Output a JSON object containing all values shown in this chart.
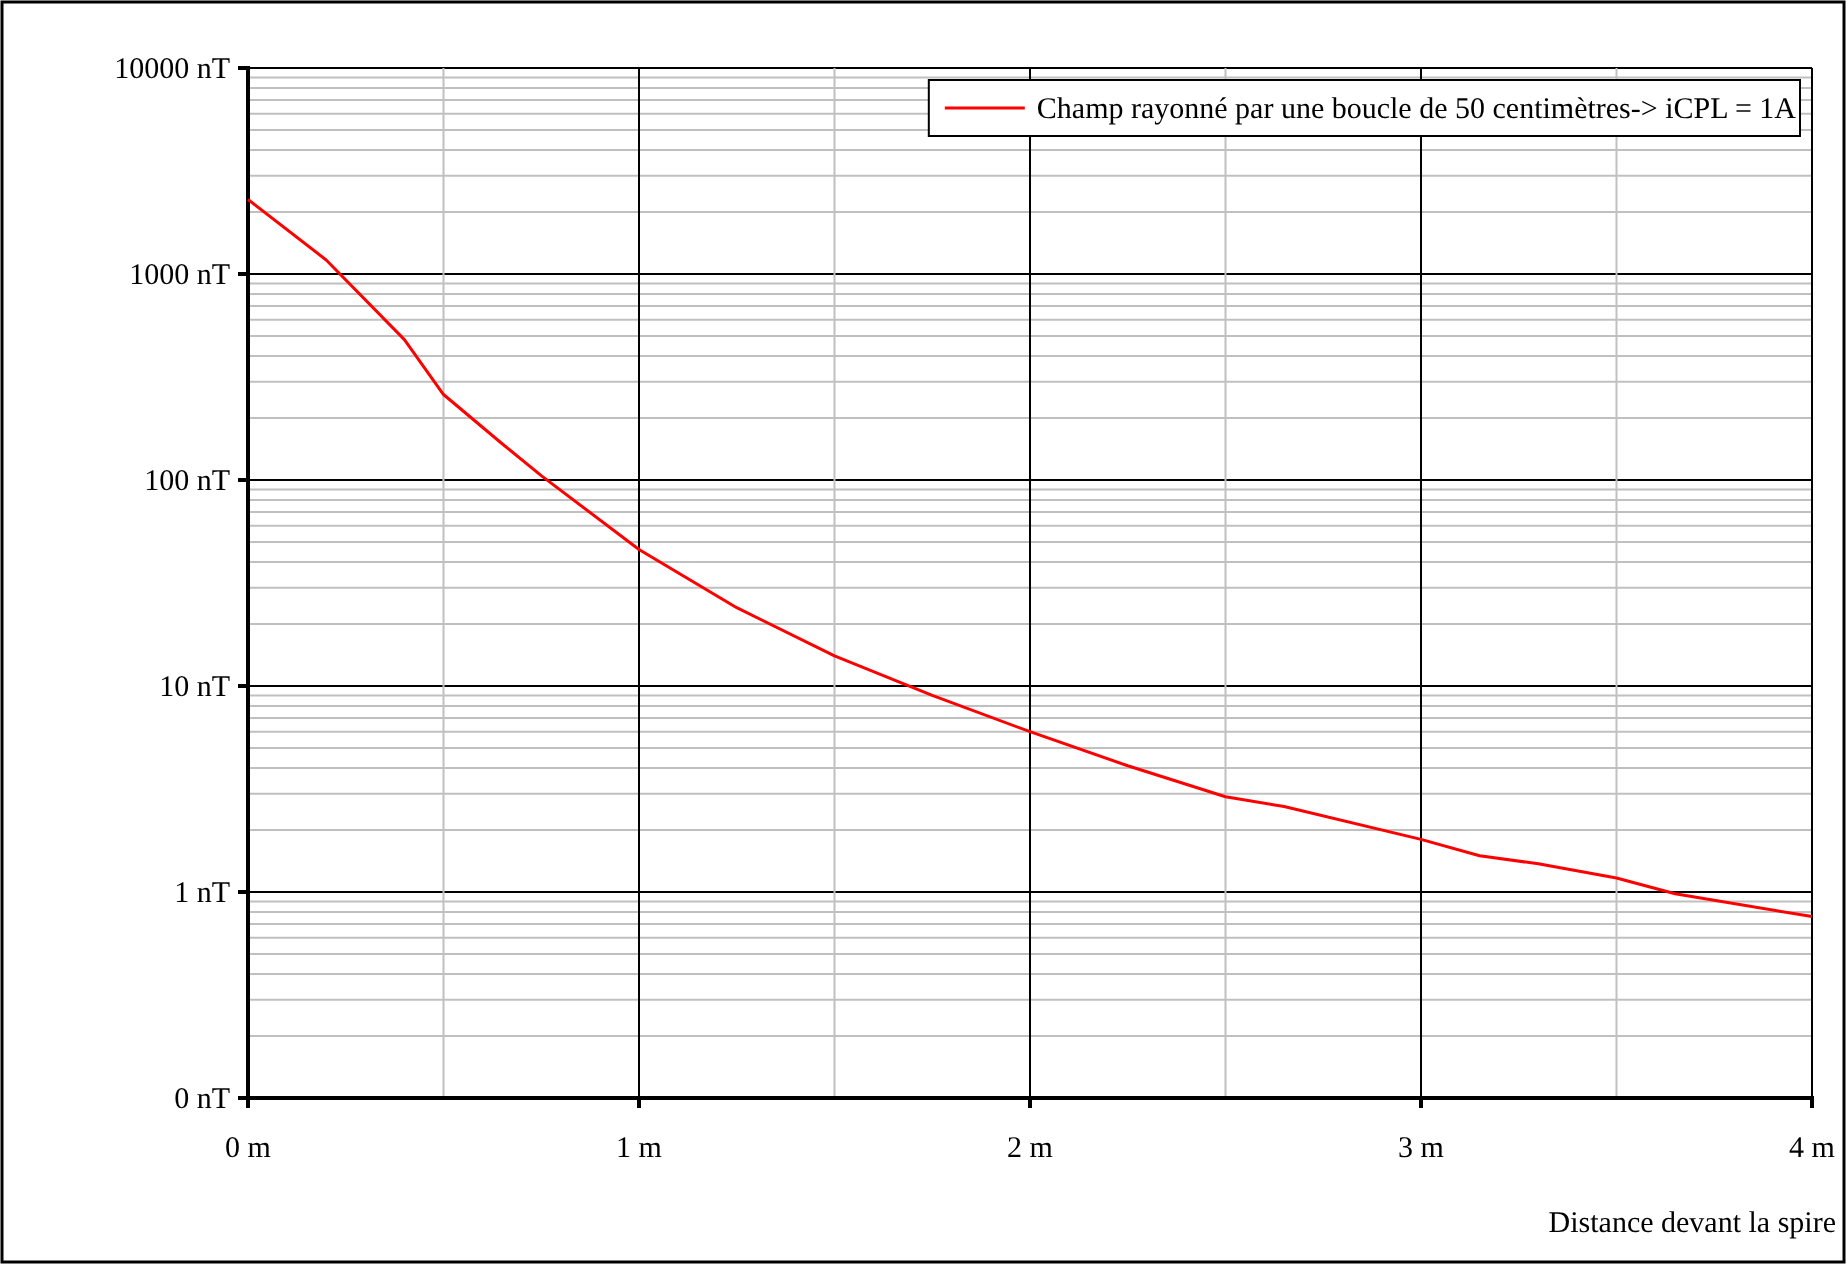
{
  "chart_data": {
    "type": "line",
    "xlabel": "Distance devant la spire",
    "log": "y",
    "grid": true,
    "legend": "top right",
    "line_style": "solid",
    "marker": "none",
    "x": [
      0,
      0.2,
      0.4,
      0.5,
      0.65,
      0.75,
      1,
      1.25,
      1.5,
      1.75,
      2,
      2.25,
      2.5,
      2.65,
      3,
      3.15,
      3.3,
      3.5,
      3.65,
      4
    ],
    "series": [
      {
        "name": "Champ rayonné par une boucle de 50 centimètres-> iCPL = 1A",
        "color": "#ff0000",
        "values": [
          2300,
          1170,
          480,
          260,
          150,
          105,
          46,
          24,
          14,
          9,
          6,
          4.1,
          2.9,
          2.6,
          1.8,
          1.5,
          1.37,
          1.17,
          0.98,
          0.76
        ]
      }
    ],
    "xlim": [
      0,
      4
    ],
    "xticks": [
      {
        "value": 0,
        "label": "0 m"
      },
      {
        "value": 1,
        "label": "1 m"
      },
      {
        "value": 2,
        "label": "2 m"
      },
      {
        "value": 3,
        "label": "3 m"
      },
      {
        "value": 4,
        "label": "4 m"
      }
    ],
    "ylim": [
      0.1,
      10000
    ],
    "yticks": [
      {
        "value": 0.1,
        "label": "0 nT"
      },
      {
        "value": 1,
        "label": "1 nT"
      },
      {
        "value": 10,
        "label": "10 nT"
      },
      {
        "value": 100,
        "label": "100 nT"
      },
      {
        "value": 1000,
        "label": "1000 nT"
      },
      {
        "value": 10000,
        "label": "10000 nT"
      }
    ]
  }
}
